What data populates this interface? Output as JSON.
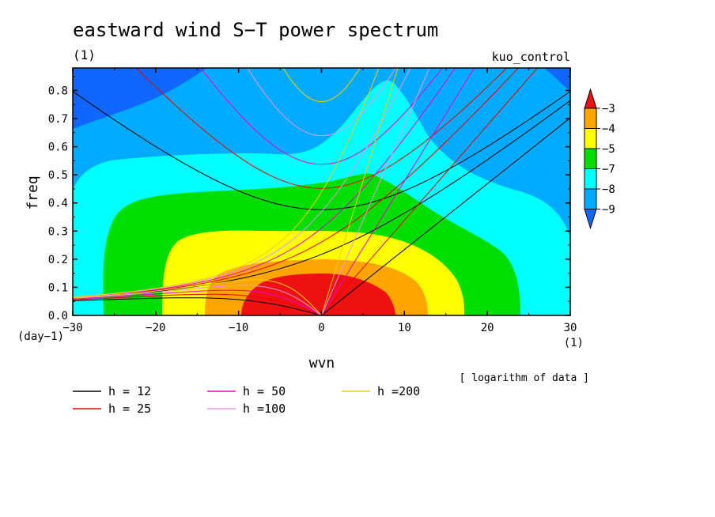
{
  "chart_data": {
    "type": "heatmap",
    "title": "eastward wind S−T power spectrum",
    "units_label": "(1)",
    "experiment": "kuo_control",
    "xlabel": "wvn",
    "ylabel": "freq",
    "x_unit": "(1)",
    "y_unit": "(day−1)",
    "note": "[ logarithm of data ]",
    "xlim": [
      -30,
      30
    ],
    "ylim": [
      0,
      0.88
    ],
    "x_ticks": [
      -30,
      -20,
      -10,
      0,
      10,
      20,
      30
    ],
    "y_ticks": [
      0.0,
      0.1,
      0.2,
      0.3,
      0.4,
      0.5,
      0.6,
      0.7,
      0.8
    ],
    "colorbar": {
      "labels": [
        "−3",
        "−4",
        "−5",
        "−7",
        "−8",
        "−9"
      ],
      "colors": [
        "#ee1111",
        "#ffa500",
        "#ffff00",
        "#00dd00",
        "#00ffff",
        "#00aaff",
        "#1166ff"
      ]
    },
    "contour_colors": [
      "#ee1111",
      "#ffa500",
      "#ffff00",
      "#00dd00",
      "#00ffff",
      "#00aaff",
      "#1166ff"
    ],
    "dispersion_curves": [
      {
        "label": "h = 12",
        "depth": 12,
        "color": "#000000"
      },
      {
        "label": "h = 25",
        "depth": 25,
        "color": "#ee0000"
      },
      {
        "label": "h = 50",
        "depth": 50,
        "color": "#ee00cc"
      },
      {
        "label": "h =100",
        "depth": 100,
        "color": "#e699e6"
      },
      {
        "label": "h =200",
        "depth": 200,
        "color": "#f0d000"
      }
    ]
  }
}
